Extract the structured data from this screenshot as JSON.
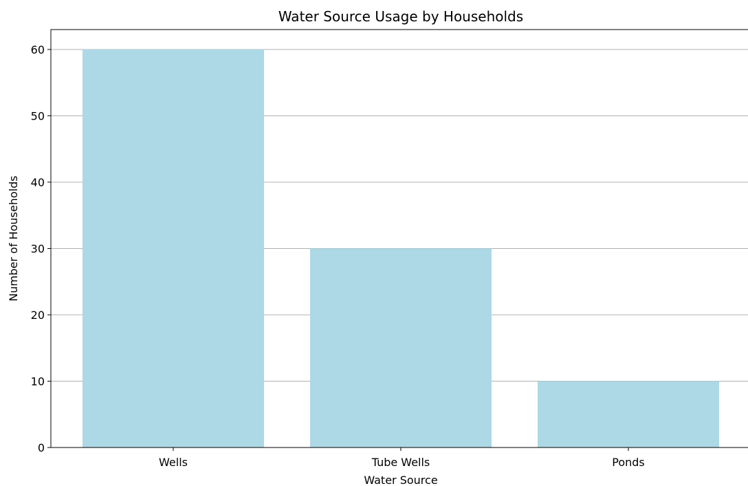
{
  "chart_data": {
    "type": "bar",
    "title": "Water Source Usage by Households",
    "xlabel": "Water Source",
    "ylabel": "Number of Households",
    "categories": [
      "Wells",
      "Tube Wells",
      "Ponds"
    ],
    "values": [
      60,
      30,
      10
    ],
    "ylim": [
      0,
      63
    ],
    "yticks": [
      0,
      10,
      20,
      30,
      40,
      50,
      60
    ],
    "grid": "y-axis",
    "bar_color": "#add8e6"
  }
}
